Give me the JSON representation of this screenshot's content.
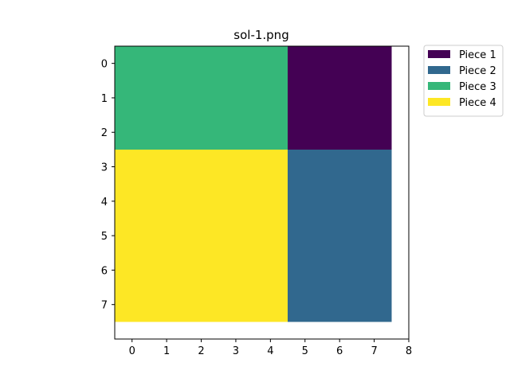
{
  "chart_data": {
    "type": "heatmap",
    "title": "sol-1.png",
    "grid_shape": [
      8,
      8
    ],
    "xlim": [
      -0.5,
      8
    ],
    "ylim": [
      8,
      -0.5
    ],
    "x_ticks": [
      0,
      1,
      2,
      3,
      4,
      5,
      6,
      7,
      8
    ],
    "y_ticks": [
      0,
      1,
      2,
      3,
      4,
      5,
      6,
      7
    ],
    "grid": false,
    "legend_position": "outside-top-right",
    "pieces": [
      {
        "name": "Piece 1",
        "color": "#440154",
        "cols": [
          5,
          7
        ],
        "rows": [
          0,
          2
        ]
      },
      {
        "name": "Piece 2",
        "color": "#31688e",
        "cols": [
          5,
          7
        ],
        "rows": [
          3,
          7
        ]
      },
      {
        "name": "Piece 3",
        "color": "#35b779",
        "cols": [
          0,
          4
        ],
        "rows": [
          0,
          2
        ]
      },
      {
        "name": "Piece 4",
        "color": "#fde725",
        "cols": [
          0,
          4
        ],
        "rows": [
          3,
          7
        ]
      }
    ]
  }
}
